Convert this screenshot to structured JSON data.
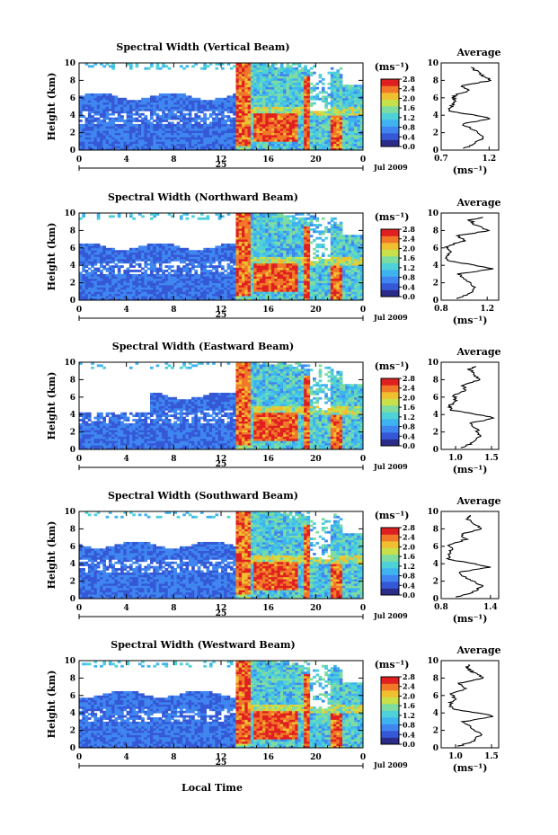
{
  "chart_data": {
    "type": "heatmap",
    "colorbar": {
      "unit": "(ms⁻¹)",
      "ticks": [
        "2.8",
        "2.4",
        "2.0",
        "1.6",
        "1.2",
        "0.8",
        "0.4",
        "0.0"
      ],
      "range": [
        0,
        2.8
      ],
      "colors": [
        "#2b2b8a",
        "#3558d6",
        "#3f86f0",
        "#3fb3f0",
        "#4ed1d8",
        "#7fdca0",
        "#c8e04a",
        "#f0c030",
        "#f07828",
        "#e02020"
      ]
    },
    "x_axis": {
      "ticks": [
        "0",
        "4",
        "8",
        "12",
        "16",
        "20",
        "0"
      ],
      "date_label": "25",
      "month_label": "Jul 2009",
      "xlabel": "Local Time",
      "range": [
        0,
        24
      ]
    },
    "y_axis": {
      "ylabel": "Height (km)",
      "ticks": [
        "0",
        "2",
        "4",
        "6",
        "8",
        "10"
      ],
      "range": [
        0,
        10
      ]
    },
    "panels": [
      {
        "title": "Spectral Width (Vertical Beam)",
        "avg_title": "Average",
        "avg_xticks": [
          "0.7",
          "1.2"
        ],
        "avg_xlabel": "(ms⁻¹)",
        "avg_xlim": [
          0.7,
          1.3
        ],
        "avg_profile": {
          "height": [
            0.2,
            0.8,
            1.5,
            2.2,
            3.0,
            3.6,
            4.0,
            4.5,
            5.0,
            5.6,
            6.2,
            6.8,
            7.4,
            8.0,
            8.6,
            9.2,
            9.6
          ],
          "value": [
            0.95,
            1.05,
            1.15,
            1.05,
            0.92,
            1.22,
            1.05,
            0.78,
            0.8,
            0.85,
            0.82,
            0.98,
            0.92,
            1.22,
            1.12,
            1.05,
            1.0
          ]
        }
      },
      {
        "title": "Spectral Width (Northward Beam)",
        "avg_title": "Average",
        "avg_xticks": [
          "0.8",
          "1.2"
        ],
        "avg_xlabel": "(ms⁻¹)",
        "avg_xlim": [
          0.8,
          1.3
        ],
        "avg_profile": {
          "height": [
            0.2,
            0.8,
            1.5,
            2.2,
            3.0,
            3.6,
            4.0,
            4.5,
            5.0,
            5.6,
            6.2,
            6.8,
            7.4,
            8.0,
            8.6,
            9.2,
            9.6
          ],
          "value": [
            0.95,
            1.05,
            1.1,
            1.02,
            0.95,
            1.25,
            1.1,
            0.86,
            0.84,
            0.88,
            0.85,
            1.0,
            0.95,
            1.22,
            1.1,
            1.05,
            1.2
          ]
        }
      },
      {
        "title": "Spectral Width (Eastward Beam)",
        "avg_title": "Average",
        "avg_xticks": [
          "1.0",
          "1.5"
        ],
        "avg_xlabel": "(ms⁻¹)",
        "avg_xlim": [
          0.8,
          1.6
        ],
        "avg_profile": {
          "height": [
            0.2,
            0.8,
            1.5,
            2.2,
            3.0,
            3.6,
            4.0,
            4.5,
            5.0,
            5.6,
            6.2,
            6.8,
            7.4,
            8.0,
            8.6,
            9.2,
            9.6
          ],
          "value": [
            1.1,
            1.25,
            1.35,
            1.3,
            1.2,
            1.55,
            1.3,
            0.95,
            0.92,
            1.0,
            0.98,
            1.15,
            1.1,
            1.35,
            1.25,
            1.2,
            1.3
          ]
        }
      },
      {
        "title": "Spectral Width (Southward Beam)",
        "avg_title": "Average",
        "avg_xticks": [
          "0.8",
          "1.4"
        ],
        "avg_xlabel": "(ms⁻¹)",
        "avg_xlim": [
          0.8,
          1.5
        ],
        "avg_profile": {
          "height": [
            0.2,
            0.8,
            1.5,
            2.2,
            3.0,
            3.6,
            4.0,
            4.5,
            5.0,
            5.6,
            6.2,
            6.8,
            7.4,
            8.0,
            8.6,
            9.2,
            9.6
          ],
          "value": [
            1.0,
            1.2,
            1.3,
            1.15,
            1.0,
            1.4,
            1.2,
            0.9,
            0.88,
            0.92,
            0.9,
            1.1,
            1.05,
            1.3,
            1.2,
            1.1,
            1.15
          ]
        }
      },
      {
        "title": "Spectral Width (Westward Beam)",
        "avg_title": "Average",
        "avg_xticks": [
          "1.0",
          "1.5"
        ],
        "avg_xlabel": "(ms⁻¹)",
        "avg_xlim": [
          0.8,
          1.6
        ],
        "avg_profile": {
          "height": [
            0.2,
            0.8,
            1.5,
            2.2,
            3.0,
            3.6,
            4.0,
            4.5,
            5.0,
            5.6,
            6.2,
            6.8,
            7.4,
            8.0,
            8.6,
            9.2,
            9.6
          ],
          "value": [
            1.05,
            1.25,
            1.35,
            1.25,
            1.1,
            1.55,
            1.3,
            0.95,
            0.92,
            0.98,
            0.95,
            1.15,
            1.05,
            1.4,
            1.25,
            1.15,
            1.2
          ]
        }
      }
    ]
  }
}
